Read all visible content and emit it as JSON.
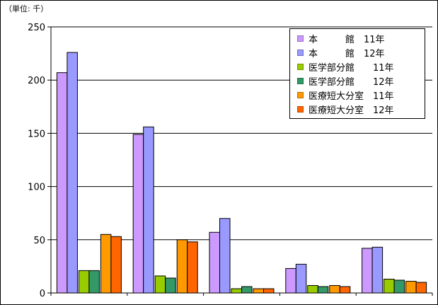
{
  "unit_note": "（単位: 千）",
  "colors": {
    "honkan_11": "#CC99FF",
    "honkan_12": "#9999FF",
    "igaku_11": "#99CC00",
    "igaku_12": "#339966",
    "iryo_11": "#FF9900",
    "iryo_12": "#FF6600",
    "grid": "#000000",
    "plot_bg": "#ffffff"
  },
  "chart_data": {
    "type": "bar",
    "title": "",
    "xlabel": "",
    "ylabel": "",
    "categories": [
      "",
      "",
      "",
      "",
      ""
    ],
    "ylim": [
      0,
      250
    ],
    "yticks": [
      0,
      50,
      100,
      150,
      200,
      250
    ],
    "grid": true,
    "legend_position": "top-right",
    "series": [
      {
        "name": "本　　　館　11年",
        "color_key": "honkan_11",
        "values": [
          207,
          149,
          57,
          23,
          42
        ]
      },
      {
        "name": "本　　　館　12年",
        "color_key": "honkan_12",
        "values": [
          226,
          156,
          70,
          27,
          43
        ]
      },
      {
        "name": "医学部分館　　11年",
        "color_key": "igaku_11",
        "values": [
          21,
          16,
          4,
          7,
          13
        ]
      },
      {
        "name": "医学部分館　　12年",
        "color_key": "igaku_12",
        "values": [
          21,
          14,
          6,
          6,
          12
        ]
      },
      {
        "name": "医療短大分室　11年",
        "color_key": "iryo_11",
        "values": [
          55,
          50,
          4,
          7,
          11
        ]
      },
      {
        "name": "医療短大分室　12年",
        "color_key": "iryo_12",
        "values": [
          53,
          48,
          4,
          6,
          10
        ]
      }
    ]
  }
}
